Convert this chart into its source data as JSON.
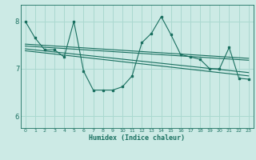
{
  "xlabel": "Humidex (Indice chaleur)",
  "bg_color": "#cceae5",
  "grid_color": "#aad8d0",
  "line_color": "#1a7060",
  "xlim": [
    -0.5,
    23.5
  ],
  "ylim": [
    5.75,
    8.35
  ],
  "yticks": [
    6,
    7,
    8
  ],
  "xticks": [
    0,
    1,
    2,
    3,
    4,
    5,
    6,
    7,
    8,
    9,
    10,
    11,
    12,
    13,
    14,
    15,
    16,
    17,
    18,
    19,
    20,
    21,
    22,
    23
  ],
  "main_line_x": [
    0,
    1,
    2,
    3,
    4,
    5,
    6,
    7,
    8,
    9,
    10,
    11,
    12,
    13,
    14,
    15,
    16,
    17,
    18,
    19,
    20,
    21,
    22,
    23
  ],
  "main_line_y": [
    8.0,
    7.65,
    7.4,
    7.4,
    7.25,
    8.0,
    6.95,
    6.55,
    6.55,
    6.55,
    6.62,
    6.85,
    7.55,
    7.75,
    8.1,
    7.72,
    7.3,
    7.25,
    7.2,
    7.0,
    7.0,
    7.45,
    6.8,
    6.78
  ],
  "reg_lines": [
    {
      "x": [
        0,
        23
      ],
      "y": [
        7.52,
        7.22
      ]
    },
    {
      "x": [
        0,
        23
      ],
      "y": [
        7.48,
        7.18
      ]
    },
    {
      "x": [
        0,
        23
      ],
      "y": [
        7.42,
        6.92
      ]
    },
    {
      "x": [
        0,
        23
      ],
      "y": [
        7.38,
        6.85
      ]
    }
  ]
}
